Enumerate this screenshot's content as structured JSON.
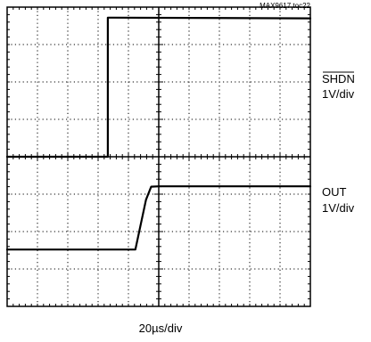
{
  "figure_id": "MAX9617 toc22",
  "chart_data": {
    "type": "line",
    "title": "",
    "xlabel": "20µs/div",
    "ylabel": "",
    "grid": true,
    "x_divisions": 10,
    "y_divisions": 8,
    "xlim": [
      0,
      10
    ],
    "ylim": [
      0,
      8
    ],
    "series": [
      {
        "name": "SHDN",
        "scale": "1V/div",
        "overline": true,
        "color": "#000000",
        "points": [
          [
            0,
            4.0
          ],
          [
            3.32,
            4.0
          ],
          [
            3.32,
            7.72
          ],
          [
            10,
            7.7
          ]
        ]
      },
      {
        "name": "OUT",
        "scale": "1V/div",
        "overline": false,
        "color": "#000000",
        "points": [
          [
            0,
            1.52
          ],
          [
            4.23,
            1.52
          ],
          [
            4.58,
            2.85
          ],
          [
            4.75,
            3.2
          ],
          [
            5.0,
            3.21
          ],
          [
            10,
            3.21
          ]
        ]
      }
    ]
  }
}
